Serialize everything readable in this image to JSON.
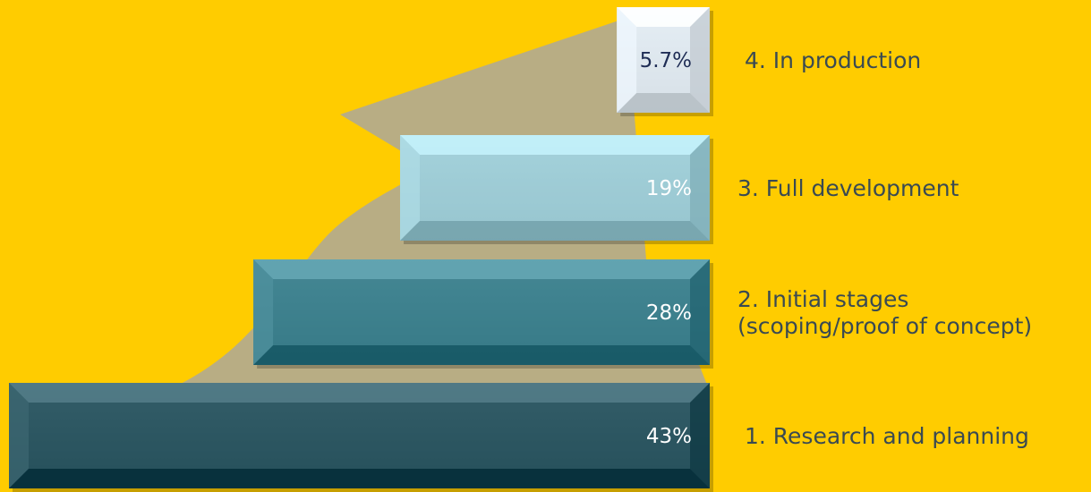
{
  "chart_data": {
    "type": "bar",
    "orientation": "horizontal",
    "stacked_as_pyramid": true,
    "categories": [
      [
        "1. Research and planning"
      ],
      [
        "2. Initial stages",
        "(scoping/proof of concept)"
      ],
      [
        "3. Full development"
      ],
      [
        "4. In production"
      ]
    ],
    "values": [
      43,
      28,
      19,
      5.7
    ],
    "value_labels": [
      "43%",
      "28%",
      "19%",
      "5.7%"
    ],
    "unit": "%",
    "title": "",
    "xlabel": "",
    "ylabel": "",
    "xlim": [
      0,
      43
    ],
    "grid": false,
    "legend": "none",
    "colors": {
      "background": "#ffcc00",
      "arrow": "#b8ad84",
      "bars": [
        "#2b5560",
        "#3d7f8c",
        "#9ccad4",
        "#dde6ec"
      ],
      "bar_value_text": [
        "#ffffff",
        "#ffffff",
        "#ffffff",
        "#1f2d55"
      ],
      "category_text": "#3a4a52"
    }
  }
}
